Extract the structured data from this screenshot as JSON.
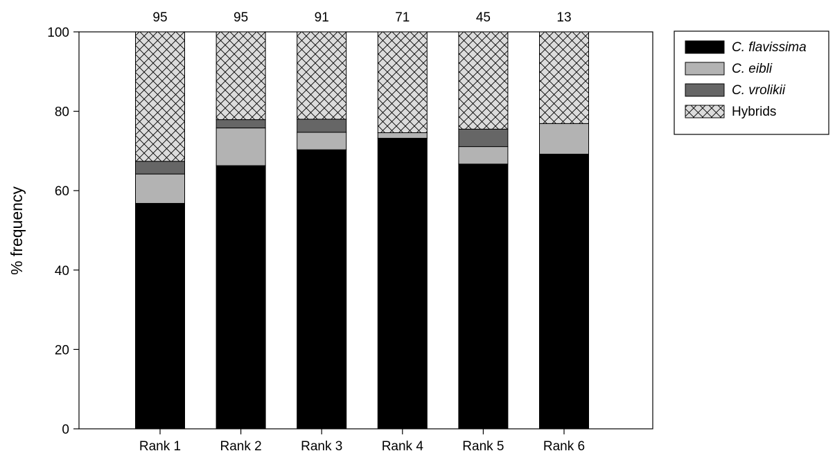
{
  "chart_data": {
    "type": "bar",
    "stacked": true,
    "categories": [
      "Rank 1",
      "Rank 2",
      "Rank 3",
      "Rank 4",
      "Rank 5",
      "Rank 6"
    ],
    "sample_sizes": [
      "95",
      "95",
      "91",
      "71",
      "45",
      "13"
    ],
    "series": [
      {
        "name": "C. flavissima",
        "values": [
          56.8,
          66.3,
          70.3,
          73.2,
          66.7,
          69.2
        ],
        "color": "#000000",
        "pattern": "solid"
      },
      {
        "name": "C. eibli",
        "values": [
          7.4,
          9.5,
          4.4,
          1.4,
          4.4,
          7.7
        ],
        "color": "#b3b3b3",
        "pattern": "solid"
      },
      {
        "name": "C. vrolikii",
        "values": [
          3.2,
          2.1,
          3.3,
          0.0,
          4.4,
          0.0
        ],
        "color": "#666666",
        "pattern": "solid"
      },
      {
        "name": "Hybrids",
        "values": [
          32.6,
          22.1,
          22.0,
          25.4,
          24.5,
          23.1
        ],
        "color": "#dcdcdc",
        "pattern": "crosshatch"
      }
    ],
    "xlabel": "",
    "ylabel": "% frequency",
    "ylim": [
      0,
      100
    ],
    "yticks": [
      "0",
      "20",
      "40",
      "60",
      "80",
      "100"
    ],
    "grid": false,
    "legend_position": "top-right, outside plot"
  }
}
